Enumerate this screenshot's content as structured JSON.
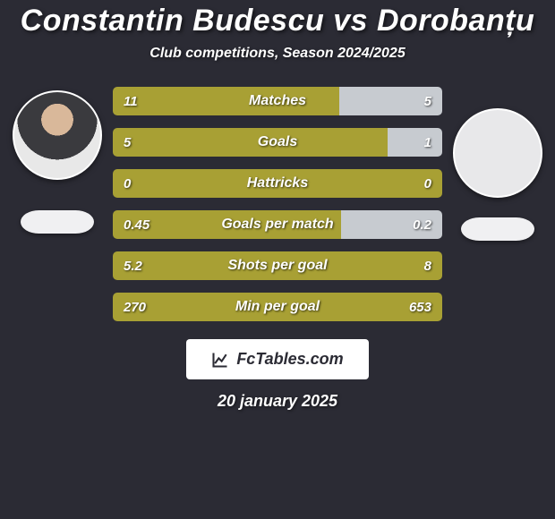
{
  "title_parts": {
    "p1": "Constantin Budescu",
    "vs": " vs ",
    "p2": "Dorobanțu"
  },
  "subtitle": "Club competitions, Season 2024/2025",
  "colors": {
    "bar_left": "#a8a034",
    "bar_right": "#c7cbd0",
    "text": "#ffffff",
    "background": "#2b2b34"
  },
  "stats": [
    {
      "name": "Matches",
      "left_val": "11",
      "right_val": "5",
      "left_pct": 68.75,
      "right_pct": 31.25
    },
    {
      "name": "Goals",
      "left_val": "5",
      "right_val": "1",
      "left_pct": 83.3,
      "right_pct": 16.7
    },
    {
      "name": "Hattricks",
      "left_val": "0",
      "right_val": "0",
      "left_pct": 100,
      "right_pct": 0
    },
    {
      "name": "Goals per match",
      "left_val": "0.45",
      "right_val": "0.2",
      "left_pct": 69.2,
      "right_pct": 30.8
    },
    {
      "name": "Shots per goal",
      "left_val": "5.2",
      "right_val": "8",
      "left_pct": 100,
      "right_pct": 0
    },
    {
      "name": "Min per goal",
      "left_val": "270",
      "right_val": "653",
      "left_pct": 100,
      "right_pct": 0
    }
  ],
  "brand": "FcTables.com",
  "date": "20 january 2025"
}
